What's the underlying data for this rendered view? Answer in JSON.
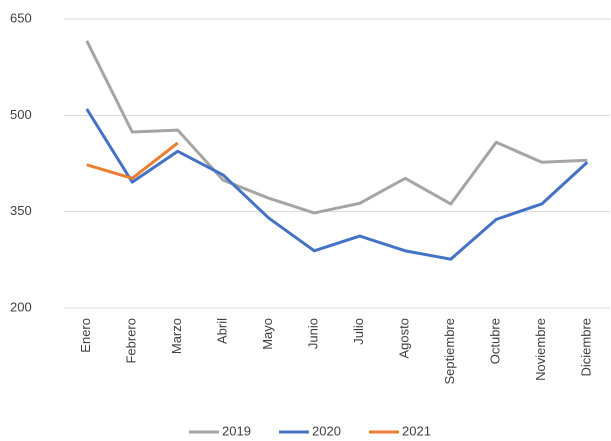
{
  "chart_data": {
    "type": "line",
    "categories": [
      "Enero",
      "Febrero",
      "Marzo",
      "Abril",
      "Mayo",
      "Junio",
      "Julio",
      "Agosto",
      "Septiembre",
      "Octubre",
      "Noviembre",
      "Diciembre"
    ],
    "series": [
      {
        "name": "2019",
        "color": "#a5a5a5",
        "values": [
          616,
          474,
          477,
          399,
          371,
          348,
          363,
          402,
          362,
          458,
          427,
          430
        ]
      },
      {
        "name": "2020",
        "color": "#4472c4",
        "values": [
          510,
          396,
          444,
          407,
          340,
          289,
          312,
          289,
          276,
          338,
          362,
          427
        ]
      },
      {
        "name": "2021",
        "color": "#ed7d31",
        "values": [
          423,
          402,
          457,
          null,
          null,
          null,
          null,
          null,
          null,
          null,
          null,
          null
        ]
      }
    ],
    "ylim": [
      200,
      650
    ],
    "yticks": [
      200,
      350,
      500,
      650
    ],
    "grid": true,
    "legend": "bottom"
  }
}
